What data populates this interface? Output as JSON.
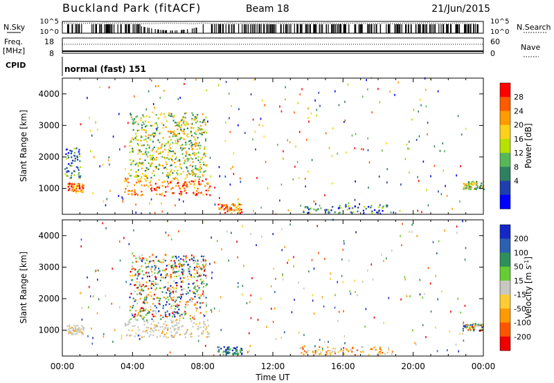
{
  "header": {
    "station": "Buckland Park (fitACF)",
    "beam": "Beam 18",
    "date": "21/Jun/2015"
  },
  "status_panel": {
    "nsky_label": "N.Sky",
    "nsearch_label": "N.Search",
    "nsky_ticks": [
      "10^5",
      "10^0"
    ],
    "nsearch_ticks": [
      "10^5",
      "10^0"
    ],
    "freq_label_line1": "Freq.",
    "freq_label_line2": "[MHz]",
    "freq_ticks": [
      "18",
      "8"
    ],
    "nave_label": "Nave",
    "nave_ticks": [
      "60",
      "0"
    ],
    "cpid_label": "CPID",
    "cpid_value": "normal (fast) 151"
  },
  "chart_data": [
    {
      "type": "heatmap",
      "name": "power",
      "ylabel": "Slant Range [km]",
      "xlabel": "Time UT",
      "x_ticks": [
        "00:00",
        "04:00",
        "08:00",
        "12:00",
        "16:00",
        "20:00",
        "00:00"
      ],
      "xlim_hours": [
        0,
        24
      ],
      "y_ticks": [
        "1000",
        "2000",
        "3000",
        "4000"
      ],
      "ylim": [
        180,
        4500
      ],
      "colorbar_label": "Power [dB]",
      "colorbar_ticks": [
        "28",
        "24",
        "20",
        "16",
        "12",
        "8",
        "4"
      ],
      "colorbar_colors": [
        "#ff0000",
        "#ff5a00",
        "#ff9a00",
        "#ffd11a",
        "#b8e000",
        "#58b858",
        "#2f8060",
        "#1f3fae",
        "#0000ff"
      ],
      "echo_regions": [
        {
          "t": [
            0.3,
            1.2
          ],
          "range": [
            850,
            1150
          ],
          "level": "high"
        },
        {
          "t": [
            0.1,
            1.0
          ],
          "range": [
            1300,
            2300
          ],
          "level": "low"
        },
        {
          "t": [
            3.5,
            8.4
          ],
          "range": [
            750,
            1300
          ],
          "level": "high"
        },
        {
          "t": [
            3.8,
            8.2
          ],
          "range": [
            1300,
            3400
          ],
          "level": "medium"
        },
        {
          "t": [
            8.8,
            10.2
          ],
          "range": [
            200,
            500
          ],
          "level": "high"
        },
        {
          "t": [
            13.5,
            18.8
          ],
          "range": [
            200,
            450
          ],
          "level": "low"
        },
        {
          "t": [
            22.8,
            24.0
          ],
          "range": [
            950,
            1200
          ],
          "level": "medium"
        }
      ]
    },
    {
      "type": "heatmap",
      "name": "velocity",
      "ylabel": "Slant Range [km]",
      "xlabel": "Time UT",
      "x_ticks": [
        "00:00",
        "04:00",
        "08:00",
        "12:00",
        "16:00",
        "20:00",
        "00:00"
      ],
      "xlim_hours": [
        0,
        24
      ],
      "y_ticks": [
        "1000",
        "2000",
        "3000",
        "4000"
      ],
      "ylim": [
        180,
        4500
      ],
      "colorbar_label": "Velocity [m s",
      "colorbar_label_sup": "-1",
      "colorbar_label_tail": "]",
      "colorbar_ticks": [
        "200",
        "100",
        "50",
        "15",
        "-15",
        "-50",
        "-100",
        "-200"
      ],
      "colorbar_colors": [
        "#1428c8",
        "#2c60b0",
        "#2f8f5a",
        "#66cc33",
        "#c8c8c0",
        "#ffcc33",
        "#ff9900",
        "#ff5500",
        "#ee0000"
      ],
      "echo_regions": [
        {
          "t": [
            0.2,
            1.2
          ],
          "range": [
            850,
            1150
          ],
          "level": "ground"
        },
        {
          "t": [
            3.5,
            8.4
          ],
          "range": [
            750,
            1300
          ],
          "level": "ground"
        },
        {
          "t": [
            3.8,
            8.2
          ],
          "range": [
            1300,
            3400
          ],
          "level": "mixed"
        },
        {
          "t": [
            8.8,
            10.2
          ],
          "range": [
            200,
            450
          ],
          "level": "positive"
        },
        {
          "t": [
            13.5,
            18.8
          ],
          "range": [
            200,
            450
          ],
          "level": "negative"
        },
        {
          "t": [
            22.8,
            24.0
          ],
          "range": [
            950,
            1200
          ],
          "level": "mixed"
        }
      ]
    }
  ]
}
